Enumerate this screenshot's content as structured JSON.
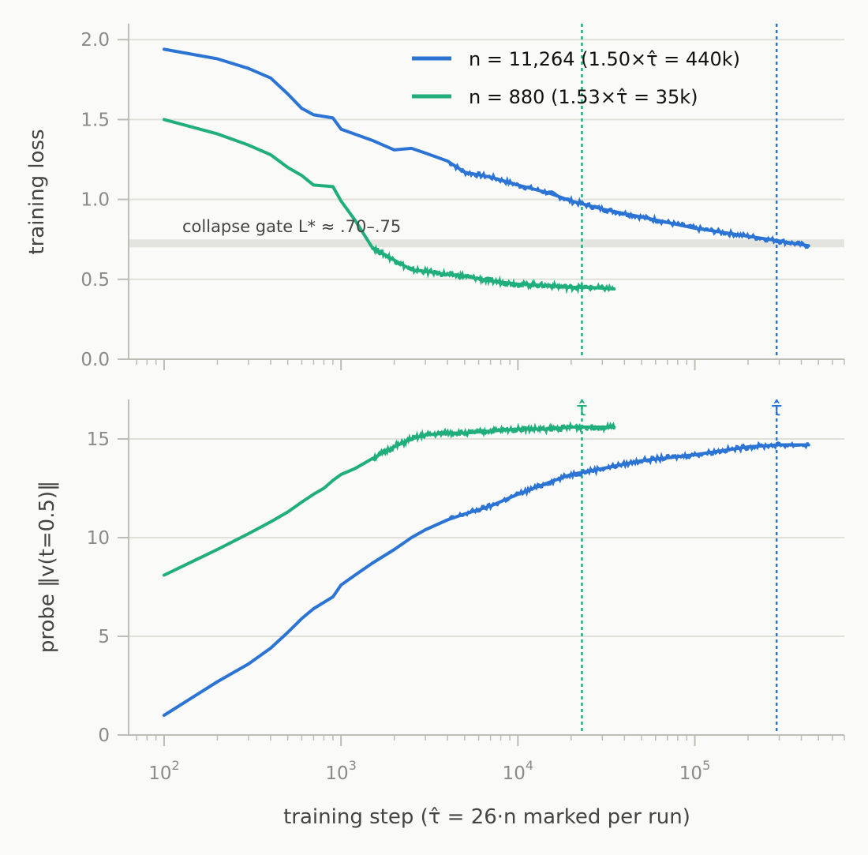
{
  "figure": {
    "xlabel": "training step (τ̂ = 26·n marked per run)"
  },
  "colors": {
    "run_large": "#2b74d4",
    "run_small": "#1fae7c",
    "grid": "#e0e0da",
    "band": "#e4e4df",
    "axis": "#bdbdb5",
    "background": "#fafaf8"
  },
  "chart_data": [
    {
      "type": "line",
      "panel": "top",
      "ylabel": "training loss",
      "xscale": "log",
      "xlim": [
        63,
        700000
      ],
      "ylim": [
        0.0,
        2.1
      ],
      "yticks": [
        0.0,
        0.5,
        1.0,
        1.5,
        2.0
      ],
      "ytick_labels": [
        "0.0",
        "0.5",
        "1.0",
        "1.5",
        "2.0"
      ],
      "grid": "horizontal",
      "legend_position": "top-right",
      "band": {
        "range": [
          0.7,
          0.75
        ],
        "label": "collapse gate L* ≈ .70–.75"
      },
      "vlines": [
        {
          "x": 23000,
          "color": "#1fae7c",
          "style": "dotted"
        },
        {
          "x": 290000,
          "color": "#2b74d4",
          "style": "dotted"
        }
      ],
      "series": [
        {
          "name": "n = 11,264 (1.50×τ̂ = 440k)",
          "color": "#2b74d4",
          "x": [
            100,
            200,
            300,
            400,
            500,
            600,
            700,
            900,
            1000,
            1500,
            2000,
            2500,
            3000,
            4000,
            5000,
            7000,
            10000,
            15000,
            20000,
            30000,
            50000,
            100000,
            200000,
            300000,
            440000
          ],
          "y": [
            1.94,
            1.88,
            1.82,
            1.76,
            1.66,
            1.57,
            1.53,
            1.51,
            1.44,
            1.37,
            1.31,
            1.32,
            1.29,
            1.24,
            1.17,
            1.14,
            1.09,
            1.04,
            0.99,
            0.94,
            0.89,
            0.82,
            0.77,
            0.74,
            0.71
          ]
        },
        {
          "name": "n = 880 (1.53×τ̂ = 35k)",
          "color": "#1fae7c",
          "x": [
            100,
            200,
            300,
            400,
            500,
            600,
            700,
            900,
            1000,
            1200,
            1500,
            2000,
            2500,
            3000,
            4000,
            5000,
            7000,
            10000,
            15000,
            20000,
            25000,
            35000
          ],
          "y": [
            1.5,
            1.41,
            1.34,
            1.28,
            1.2,
            1.15,
            1.09,
            1.08,
            0.99,
            0.87,
            0.7,
            0.62,
            0.56,
            0.55,
            0.53,
            0.52,
            0.49,
            0.47,
            0.46,
            0.45,
            0.45,
            0.44
          ]
        }
      ]
    },
    {
      "type": "line",
      "panel": "bottom",
      "ylabel": "probe ‖v(t=0.5)‖",
      "xscale": "log",
      "xlim": [
        63,
        700000
      ],
      "ylim": [
        0,
        17
      ],
      "yticks": [
        0,
        5,
        10,
        15
      ],
      "ytick_labels": [
        "0",
        "5",
        "10",
        "15"
      ],
      "xticks": [
        100,
        1000,
        10000,
        100000
      ],
      "xtick_bases": [
        "10",
        "10",
        "10",
        "10"
      ],
      "xtick_exps": [
        "2",
        "3",
        "4",
        "5"
      ],
      "grid": "horizontal",
      "vlines": [
        {
          "x": 23000,
          "color": "#1fae7c",
          "style": "dotted",
          "label": "τ̂"
        },
        {
          "x": 290000,
          "color": "#2b74d4",
          "style": "dotted",
          "label": "τ̂"
        }
      ],
      "series": [
        {
          "name": "n = 11,264 (1.50×τ̂ = 440k)",
          "color": "#2b74d4",
          "x": [
            100,
            200,
            300,
            400,
            500,
            600,
            700,
            900,
            1000,
            1200,
            1500,
            2000,
            2500,
            3000,
            4000,
            5000,
            7000,
            10000,
            15000,
            20000,
            30000,
            50000,
            100000,
            200000,
            300000,
            440000
          ],
          "y": [
            1.0,
            2.7,
            3.6,
            4.4,
            5.2,
            5.9,
            6.4,
            7.0,
            7.6,
            8.1,
            8.7,
            9.4,
            10.0,
            10.4,
            10.9,
            11.2,
            11.6,
            12.2,
            12.8,
            13.2,
            13.5,
            13.9,
            14.2,
            14.6,
            14.7,
            14.7
          ]
        },
        {
          "name": "n = 880 (1.53×τ̂ = 35k)",
          "color": "#1fae7c",
          "x": [
            100,
            200,
            300,
            400,
            500,
            600,
            700,
            800,
            900,
            1000,
            1200,
            1500,
            2000,
            2500,
            3000,
            4000,
            5000,
            7000,
            10000,
            15000,
            20000,
            25000,
            35000
          ],
          "y": [
            8.1,
            9.4,
            10.2,
            10.8,
            11.3,
            11.8,
            12.2,
            12.5,
            12.9,
            13.2,
            13.5,
            14.0,
            14.6,
            15.0,
            15.2,
            15.3,
            15.3,
            15.4,
            15.5,
            15.5,
            15.6,
            15.6,
            15.6
          ]
        }
      ]
    }
  ]
}
